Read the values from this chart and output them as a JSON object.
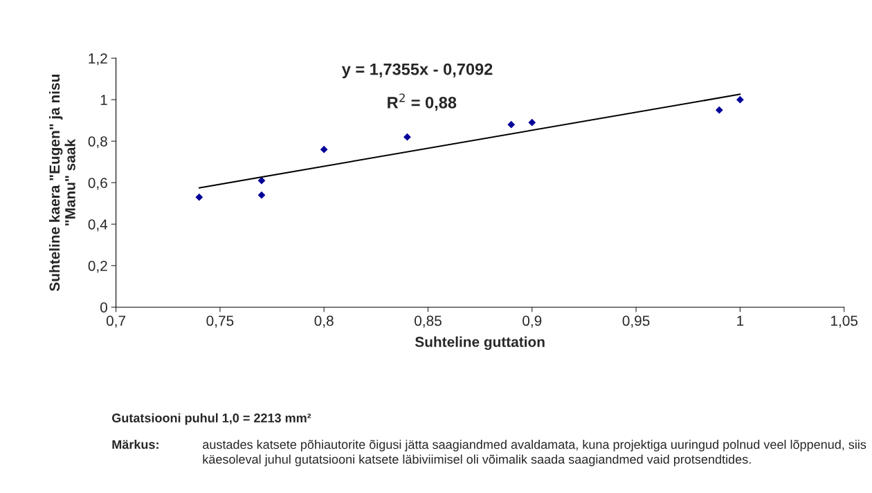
{
  "chart_data": {
    "type": "scatter",
    "xlabel": "Suhteline guttation",
    "ylabel": "Suhteline kaera \"Eugen\" ja nisu\n\"Manu\" saak",
    "series": [
      {
        "color": "#000099",
        "marker": "diamond",
        "x": [
          0.74,
          0.77,
          0.77,
          0.8,
          0.84,
          0.89,
          0.9,
          0.99,
          1.0
        ],
        "values": [
          0.53,
          0.61,
          0.54,
          0.76,
          0.82,
          0.88,
          0.89,
          0.95,
          1.0
        ]
      },
      {
        "type": "line",
        "color": "#000000",
        "line_style": "solid",
        "x": [
          0.74,
          1.0
        ],
        "values": [
          0.575,
          1.026
        ]
      }
    ],
    "xlim": [
      0.7,
      1.05
    ],
    "xticks": [
      {
        "value": 0.7,
        "label": "0,7"
      },
      {
        "value": 0.75,
        "label": "0,75"
      },
      {
        "value": 0.8,
        "label": "0,8"
      },
      {
        "value": 0.85,
        "label": "0,85"
      },
      {
        "value": 0.9,
        "label": "0,9"
      },
      {
        "value": 0.95,
        "label": "0,95"
      },
      1,
      {
        "value": 1.05,
        "label": "1,05"
      }
    ],
    "ylim": [
      0,
      1.2
    ],
    "yticks": [
      0,
      {
        "value": 0.2,
        "label": "0,2"
      },
      {
        "value": 0.4,
        "label": "0,4"
      },
      {
        "value": 0.6,
        "label": "0,6"
      },
      {
        "value": 0.8,
        "label": "0,8"
      },
      1,
      {
        "value": 1.2,
        "label": "1,2"
      }
    ],
    "grid": false,
    "legend": false,
    "annotations": [
      "y = 1,7355x - 0,7092",
      "R$^{2}$ = 0,88",
      "Gutatsiooni puhul 1,0 = 2213 mm²",
      "Märkus:",
      "austades katsete põhiautorite õigusi jätta saagiandmed avaldamata, kuna projektiga uuringud polnud veel lõppenud, siis käesoleval juhul gutatsiooni katsete läbiviimisel oli võimalik saada saagiandmed vaid protsendtides."
    ]
  }
}
